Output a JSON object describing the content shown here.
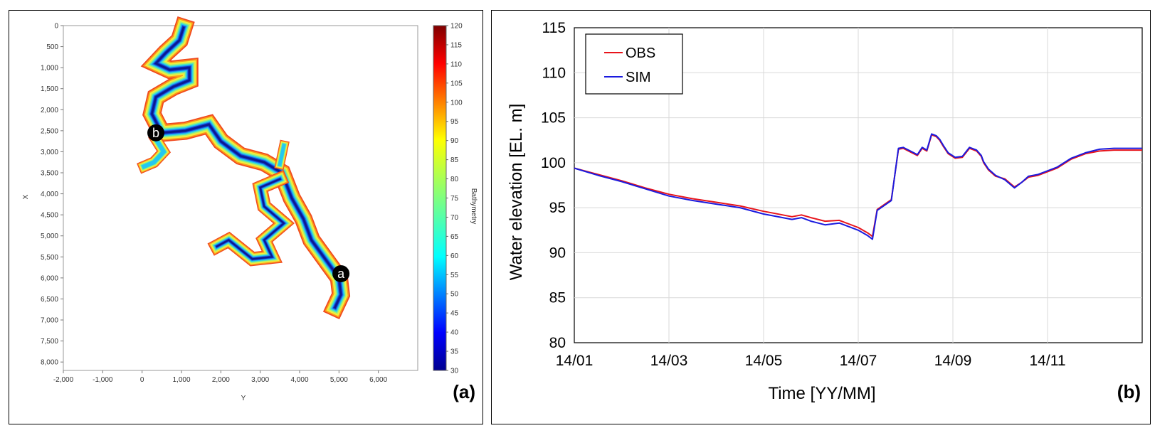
{
  "chart_data": [
    {
      "type": "heatmap",
      "panel_label": "(a)",
      "title": "",
      "xlabel": "Y",
      "ylabel": "X",
      "xlim": [
        -2000,
        7000
      ],
      "ylim": [
        0,
        8200
      ],
      "x_ticks": [
        "-2,000",
        "-1,000",
        "0",
        "1,000",
        "2,000",
        "3,000",
        "4,000",
        "5,000",
        "6,000"
      ],
      "x_tick_values": [
        -2000,
        -1000,
        0,
        1000,
        2000,
        3000,
        4000,
        5000,
        6000
      ],
      "y_ticks": [
        "0",
        "500",
        "1,000",
        "1,500",
        "2,000",
        "2,500",
        "3,000",
        "3,500",
        "4,000",
        "4,500",
        "5,000",
        "5,500",
        "6,000",
        "6,500",
        "7,000",
        "7,500",
        "8,000"
      ],
      "y_tick_values": [
        0,
        500,
        1000,
        1500,
        2000,
        2500,
        3000,
        3500,
        4000,
        4500,
        5000,
        5500,
        6000,
        6500,
        7000,
        7500,
        8000
      ],
      "colorbar": {
        "label": "Bathymetry",
        "min": 30,
        "max": 120,
        "ticks": [
          "120",
          "115",
          "110",
          "105",
          "100",
          "95",
          "90",
          "85",
          "80",
          "75",
          "70",
          "65",
          "60",
          "55",
          "50",
          "45",
          "40",
          "35",
          "30"
        ],
        "tick_values": [
          120,
          115,
          110,
          105,
          100,
          95,
          90,
          85,
          80,
          75,
          70,
          65,
          60,
          55,
          50,
          45,
          40,
          35,
          30
        ]
      },
      "markers": [
        {
          "label": "a",
          "y": 5050,
          "x": 5900
        },
        {
          "label": "b",
          "y": 350,
          "x": 2550
        }
      ],
      "reservoir_path": [
        {
          "y": 1050,
          "x": 50,
          "w": 90
        },
        {
          "y": 950,
          "x": 350,
          "w": 100
        },
        {
          "y": 600,
          "x": 650,
          "w": 110
        },
        {
          "y": 350,
          "x": 900,
          "w": 110
        },
        {
          "y": 700,
          "x": 1050,
          "w": 110
        },
        {
          "y": 1200,
          "x": 1000,
          "w": 110
        },
        {
          "y": 1200,
          "x": 1300,
          "w": 110
        },
        {
          "y": 800,
          "x": 1450,
          "w": 110
        },
        {
          "y": 350,
          "x": 1700,
          "w": 120
        },
        {
          "y": 250,
          "x": 2100,
          "w": 150
        },
        {
          "y": 500,
          "x": 2550,
          "w": 190
        },
        {
          "y": 1100,
          "x": 2500,
          "w": 220
        },
        {
          "y": 1700,
          "x": 2350,
          "w": 220
        },
        {
          "y": 2000,
          "x": 2750,
          "w": 240
        },
        {
          "y": 2500,
          "x": 3100,
          "w": 270
        },
        {
          "y": 3100,
          "x": 3250,
          "w": 300
        },
        {
          "y": 3550,
          "x": 3500,
          "w": 340
        },
        {
          "y": 3800,
          "x": 4100,
          "w": 360
        },
        {
          "y": 4100,
          "x": 4600,
          "w": 380
        },
        {
          "y": 4300,
          "x": 5100,
          "w": 360
        },
        {
          "y": 4650,
          "x": 5550,
          "w": 330
        },
        {
          "y": 5000,
          "x": 6000,
          "w": 300
        },
        {
          "y": 5050,
          "x": 6400,
          "w": 230
        },
        {
          "y": 4900,
          "x": 6700,
          "w": 140
        }
      ],
      "reservoir_branches": [
        [
          {
            "y": 350,
            "x": 2700,
            "w": 140
          },
          {
            "y": 550,
            "x": 3000,
            "w": 140
          },
          {
            "y": 300,
            "x": 3250,
            "w": 130
          },
          {
            "y": 50,
            "x": 3350,
            "w": 110
          }
        ],
        [
          {
            "y": 3500,
            "x": 3650,
            "w": 180
          },
          {
            "y": 3000,
            "x": 3850,
            "w": 180
          },
          {
            "y": 3100,
            "x": 4300,
            "w": 190
          },
          {
            "y": 3600,
            "x": 4700,
            "w": 200
          },
          {
            "y": 3100,
            "x": 5100,
            "w": 180
          },
          {
            "y": 3300,
            "x": 5500,
            "w": 160
          },
          {
            "y": 2800,
            "x": 5550,
            "w": 140
          },
          {
            "y": 2200,
            "x": 5100,
            "w": 120
          },
          {
            "y": 1900,
            "x": 5250,
            "w": 100
          }
        ],
        [
          {
            "y": 3500,
            "x": 3300,
            "w": 120
          },
          {
            "y": 3600,
            "x": 2850,
            "w": 100
          }
        ]
      ]
    },
    {
      "type": "line",
      "panel_label": "(b)",
      "title": "",
      "xlabel": "Time [YY/MM]",
      "ylabel": "Water elevation [EL. m]",
      "ylim": [
        80,
        115
      ],
      "xlim": [
        0,
        12
      ],
      "x_ticks": [
        "14/01",
        "14/03",
        "14/05",
        "14/07",
        "14/09",
        "14/11"
      ],
      "x_tick_values": [
        0,
        2,
        4,
        6,
        8,
        10
      ],
      "y_ticks": [
        "80",
        "85",
        "90",
        "95",
        "100",
        "105",
        "110",
        "115"
      ],
      "y_tick_values": [
        80,
        85,
        90,
        95,
        100,
        105,
        110,
        115
      ],
      "grid": true,
      "legend": {
        "position": "top-left"
      },
      "series": [
        {
          "name": "OBS",
          "color": "#e8141b",
          "x": [
            0,
            0.5,
            1,
            1.5,
            2,
            2.5,
            3,
            3.5,
            4,
            4.2,
            4.6,
            4.8,
            5,
            5.3,
            5.6,
            6,
            6.2,
            6.3,
            6.4,
            6.7,
            6.85,
            6.95,
            7.1,
            7.25,
            7.35,
            7.45,
            7.55,
            7.65,
            7.72,
            7.8,
            7.9,
            8.05,
            8.2,
            8.35,
            8.5,
            8.6,
            8.65,
            8.75,
            8.9,
            9.1,
            9.3,
            9.45,
            9.6,
            9.8,
            9.95,
            10.2,
            10.5,
            10.8,
            11.1,
            11.4,
            11.7,
            12
          ],
          "values": [
            99.4,
            98.7,
            98.0,
            97.2,
            96.5,
            96.0,
            95.6,
            95.2,
            94.6,
            94.4,
            94.0,
            94.2,
            93.9,
            93.5,
            93.6,
            92.8,
            92.2,
            91.8,
            94.8,
            95.9,
            101.5,
            101.6,
            101.2,
            100.8,
            101.6,
            101.3,
            103.1,
            102.9,
            102.5,
            101.8,
            101.0,
            100.5,
            100.6,
            101.6,
            101.3,
            100.7,
            100.0,
            99.2,
            98.5,
            98.2,
            97.3,
            97.8,
            98.4,
            98.6,
            98.9,
            99.4,
            100.4,
            101.0,
            101.3,
            101.4,
            101.4,
            101.4
          ],
          "x_detail": [
            0,
            1,
            2,
            3,
            4,
            4.2,
            4.6,
            4.8,
            5,
            5.3,
            5.6,
            6,
            6.25,
            6.3,
            6.4,
            6.7,
            6.85,
            6.95,
            7.1,
            7.25,
            7.35,
            7.45,
            7.55,
            7.65,
            7.72,
            7.8,
            7.9,
            8.05,
            8.2,
            8.35,
            8.5,
            8.6,
            8.65,
            8.75,
            8.9,
            9.1,
            9.3,
            9.45,
            9.6,
            9.8,
            9.95,
            10.2,
            10.5,
            10.8,
            11.1,
            11.4,
            11.7,
            12
          ]
        },
        {
          "name": "SIM",
          "color": "#1a1adf",
          "x": [
            0,
            0.5,
            1,
            1.5,
            2,
            2.5,
            3,
            3.5,
            4,
            4.2,
            4.6,
            4.8,
            5,
            5.3,
            5.6,
            6,
            6.2,
            6.3,
            6.4,
            6.7,
            6.85,
            6.95,
            7.1,
            7.25,
            7.35,
            7.45,
            7.55,
            7.65,
            7.72,
            7.8,
            7.9,
            8.05,
            8.2,
            8.35,
            8.5,
            8.6,
            8.65,
            8.75,
            8.9,
            9.1,
            9.3,
            9.45,
            9.6,
            9.8,
            9.95,
            10.2,
            10.5,
            10.8,
            11.1,
            11.4,
            11.7,
            12
          ],
          "values": [
            99.4,
            98.6,
            97.9,
            97.1,
            96.3,
            95.8,
            95.4,
            95.0,
            94.3,
            94.1,
            93.7,
            93.9,
            93.5,
            93.1,
            93.3,
            92.5,
            91.9,
            91.5,
            94.7,
            95.8,
            101.6,
            101.7,
            101.3,
            100.9,
            101.7,
            101.4,
            103.2,
            103.0,
            102.6,
            101.9,
            101.1,
            100.6,
            100.7,
            101.7,
            101.4,
            100.8,
            100.1,
            99.3,
            98.6,
            98.1,
            97.2,
            97.8,
            98.5,
            98.7,
            99.0,
            99.5,
            100.5,
            101.1,
            101.5,
            101.6,
            101.6,
            101.6
          ]
        }
      ]
    }
  ]
}
